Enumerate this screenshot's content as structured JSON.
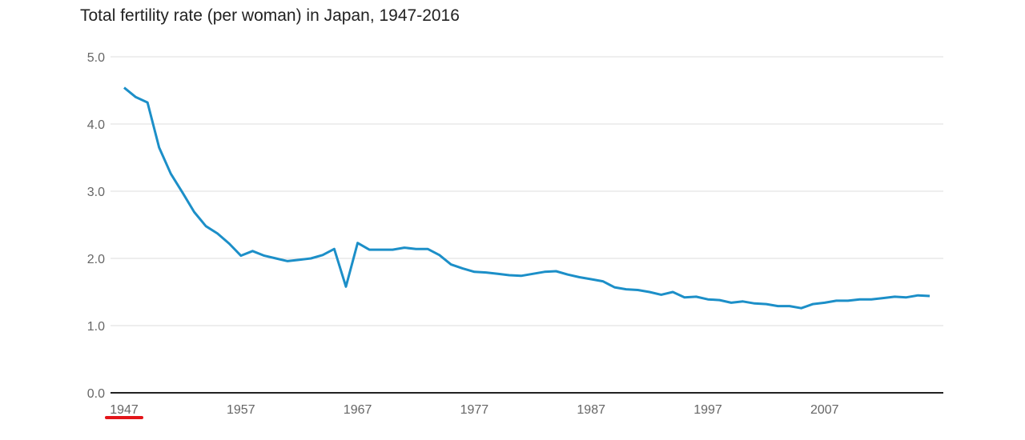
{
  "chart_data": {
    "type": "line",
    "title": "Total fertility rate (per woman) in Japan, 1947-2016",
    "xlabel": "",
    "ylabel": "",
    "ylim": [
      0,
      5
    ],
    "xlim": [
      1947,
      2016
    ],
    "yticks": [
      "0.0",
      "1.0",
      "2.0",
      "3.0",
      "4.0",
      "5.0"
    ],
    "xticks": [
      "1947",
      "1957",
      "1967",
      "1977",
      "1987",
      "1997",
      "2007"
    ],
    "grid": true,
    "x": [
      1947,
      1948,
      1949,
      1950,
      1951,
      1952,
      1953,
      1954,
      1955,
      1956,
      1957,
      1958,
      1959,
      1960,
      1961,
      1962,
      1963,
      1964,
      1965,
      1966,
      1967,
      1968,
      1969,
      1970,
      1971,
      1972,
      1973,
      1974,
      1975,
      1976,
      1977,
      1978,
      1979,
      1980,
      1981,
      1982,
      1983,
      1984,
      1985,
      1986,
      1987,
      1988,
      1989,
      1990,
      1991,
      1992,
      1993,
      1994,
      1995,
      1996,
      1997,
      1998,
      1999,
      2000,
      2001,
      2002,
      2003,
      2004,
      2005,
      2006,
      2007,
      2008,
      2009,
      2010,
      2011,
      2012,
      2013,
      2014,
      2015,
      2016
    ],
    "series": [
      {
        "name": "",
        "color": "#1c8fc8",
        "values": [
          4.54,
          4.4,
          4.32,
          3.65,
          3.26,
          2.98,
          2.69,
          2.48,
          2.37,
          2.22,
          2.04,
          2.11,
          2.04,
          2.0,
          1.96,
          1.98,
          2.0,
          2.05,
          2.14,
          1.58,
          2.23,
          2.13,
          2.13,
          2.13,
          2.16,
          2.14,
          2.14,
          2.05,
          1.91,
          1.85,
          1.8,
          1.79,
          1.77,
          1.75,
          1.74,
          1.77,
          1.8,
          1.81,
          1.76,
          1.72,
          1.69,
          1.66,
          1.57,
          1.54,
          1.53,
          1.5,
          1.46,
          1.5,
          1.42,
          1.43,
          1.39,
          1.38,
          1.34,
          1.36,
          1.33,
          1.32,
          1.29,
          1.29,
          1.26,
          1.32,
          1.34,
          1.37,
          1.37,
          1.39,
          1.39,
          1.41,
          1.43,
          1.42,
          1.45,
          1.44
        ]
      }
    ],
    "annotations": [
      {
        "type": "underline",
        "target_xtick": "1947",
        "color": "#e3151a"
      }
    ]
  }
}
